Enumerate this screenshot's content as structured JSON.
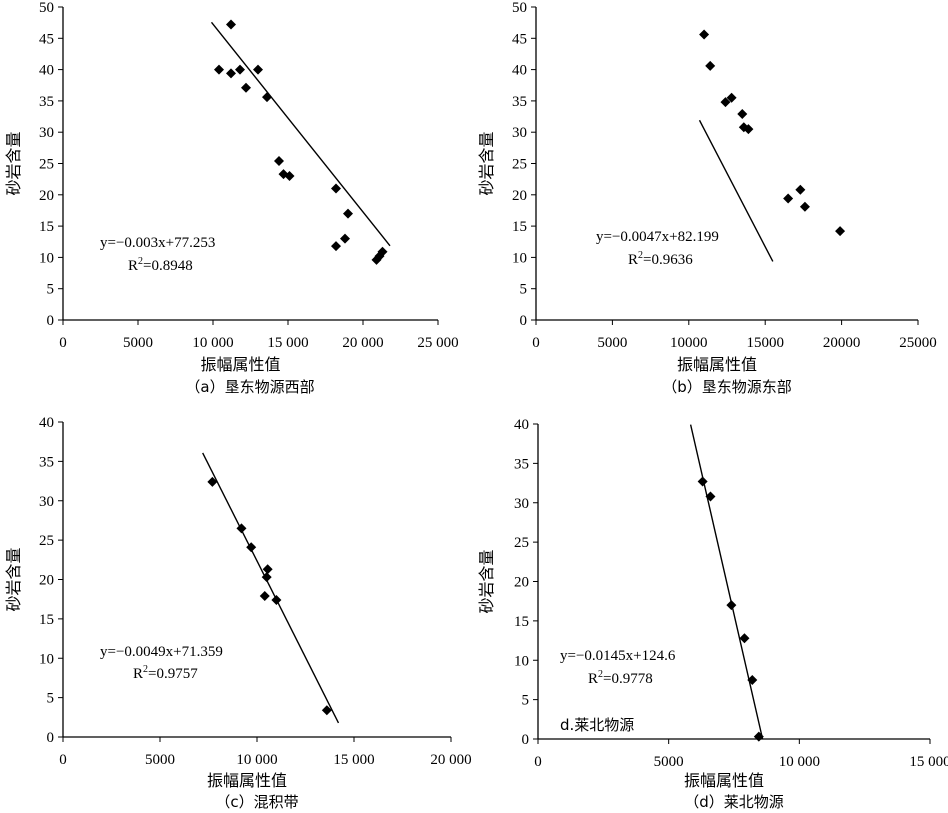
{
  "chart_data": [
    {
      "type": "scatter",
      "caption": "（a）垦东物源西部",
      "xlabel": "振幅属性值",
      "ylabel": "砂岩含量",
      "xlim": [
        0,
        25000
      ],
      "ylim": [
        0,
        50
      ],
      "x_ticks": [
        0,
        5000,
        10000,
        15000,
        20000,
        25000
      ],
      "x_tick_labels": [
        "0",
        "5000",
        "10 000",
        "15 000",
        "20 000",
        "25 000"
      ],
      "y_ticks": [
        0,
        5,
        10,
        15,
        20,
        25,
        30,
        35,
        40,
        45,
        50
      ],
      "y_tick_labels": [
        "0",
        "5",
        "10",
        "15",
        "20",
        "25",
        "30",
        "35",
        "40",
        "45",
        "50"
      ],
      "points": [
        {
          "x": 10400,
          "y": 40.0
        },
        {
          "x": 11200,
          "y": 39.4
        },
        {
          "x": 11200,
          "y": 47.2
        },
        {
          "x": 11800,
          "y": 40.0
        },
        {
          "x": 12200,
          "y": 37.1
        },
        {
          "x": 13000,
          "y": 40.0
        },
        {
          "x": 13600,
          "y": 35.6
        },
        {
          "x": 14400,
          "y": 25.4
        },
        {
          "x": 14700,
          "y": 23.3
        },
        {
          "x": 15100,
          "y": 23.0
        },
        {
          "x": 18200,
          "y": 21.0
        },
        {
          "x": 18200,
          "y": 11.8
        },
        {
          "x": 18800,
          "y": 13.0
        },
        {
          "x": 19000,
          "y": 17.0
        },
        {
          "x": 20900,
          "y": 9.6
        },
        {
          "x": 21100,
          "y": 10.2
        },
        {
          "x": 21300,
          "y": 10.9
        }
      ],
      "trendline": {
        "x_range": [
          9900,
          21800
        ],
        "slope": -0.003,
        "intercept": 77.253
      },
      "equation": "y=−0.003x+77.253",
      "r2": "0.8948"
    },
    {
      "type": "scatter",
      "caption": "（b）垦东物源东部",
      "xlabel": "振幅属性值",
      "ylabel": "砂岩含量",
      "xlim": [
        0,
        25000
      ],
      "ylim": [
        0,
        50
      ],
      "x_ticks": [
        0,
        5000,
        10000,
        15000,
        20000,
        25000
      ],
      "x_tick_labels": [
        "0",
        "5000",
        "10000",
        "15000",
        "20000",
        "25000"
      ],
      "y_ticks": [
        0,
        5,
        10,
        15,
        20,
        25,
        30,
        35,
        40,
        45,
        50
      ],
      "y_tick_labels": [
        "0",
        "5",
        "10",
        "15",
        "20",
        "25",
        "30",
        "35",
        "40",
        "45",
        "50"
      ],
      "points": [
        {
          "x": 11000,
          "y": 45.6
        },
        {
          "x": 11400,
          "y": 40.6
        },
        {
          "x": 12400,
          "y": 34.8
        },
        {
          "x": 12800,
          "y": 35.5
        },
        {
          "x": 13500,
          "y": 32.9
        },
        {
          "x": 13600,
          "y": 30.8
        },
        {
          "x": 13900,
          "y": 30.5
        },
        {
          "x": 16500,
          "y": 19.4
        },
        {
          "x": 17300,
          "y": 20.8
        },
        {
          "x": 17600,
          "y": 18.1
        },
        {
          "x": 19900,
          "y": 14.2
        }
      ],
      "trendline": {
        "x_range": [
          10700,
          15500
        ],
        "slope": -0.0047,
        "intercept": 82.199
      },
      "equation": "y=−0.0047x+82.199",
      "r2": "0.9636"
    },
    {
      "type": "scatter",
      "caption": "（c）混积带",
      "xlabel": "振幅属性值",
      "ylabel": "砂岩含量",
      "xlim": [
        0,
        20000
      ],
      "ylim": [
        0,
        40
      ],
      "x_ticks": [
        0,
        5000,
        10000,
        15000,
        20000
      ],
      "x_tick_labels": [
        "0",
        "5000",
        "10 000",
        "15 000",
        "20 000"
      ],
      "y_ticks": [
        0,
        5,
        10,
        15,
        20,
        25,
        30,
        35,
        40
      ],
      "y_tick_labels": [
        "0",
        "5",
        "10",
        "15",
        "20",
        "25",
        "30",
        "35",
        "40"
      ],
      "points": [
        {
          "x": 7700,
          "y": 32.4
        },
        {
          "x": 9200,
          "y": 26.5
        },
        {
          "x": 9700,
          "y": 24.1
        },
        {
          "x": 10400,
          "y": 17.9
        },
        {
          "x": 10500,
          "y": 20.3
        },
        {
          "x": 10550,
          "y": 21.3
        },
        {
          "x": 11000,
          "y": 17.4
        },
        {
          "x": 13600,
          "y": 3.4
        }
      ],
      "trendline": {
        "x_range": [
          7200,
          14200
        ],
        "slope": -0.0049,
        "intercept": 71.359
      },
      "equation": "y=−0.0049x+71.359",
      "r2": "0.9757"
    },
    {
      "type": "scatter",
      "caption": "（d）莱北物源",
      "annotation": "d.莱北物源",
      "xlabel": "振幅属性值",
      "ylabel": "砂岩含量",
      "xlim": [
        0,
        15000
      ],
      "ylim": [
        0,
        40
      ],
      "x_ticks": [
        0,
        5000,
        10000,
        15000
      ],
      "x_tick_labels": [
        "0",
        "5000",
        "10 000",
        "15 000"
      ],
      "y_ticks": [
        0,
        5,
        10,
        15,
        20,
        25,
        30,
        35,
        40
      ],
      "y_tick_labels": [
        "0",
        "5",
        "10",
        "15",
        "20",
        "25",
        "30",
        "35",
        "40"
      ],
      "points": [
        {
          "x": 6300,
          "y": 32.7
        },
        {
          "x": 6600,
          "y": 30.8
        },
        {
          "x": 7400,
          "y": 17.0
        },
        {
          "x": 7900,
          "y": 12.8
        },
        {
          "x": 8200,
          "y": 7.5
        },
        {
          "x": 8450,
          "y": 0.3
        }
      ],
      "trendline": {
        "x_range": [
          5840,
          8590
        ],
        "slope": -0.0145,
        "intercept": 124.6
      },
      "equation": "y=−0.0145x+124.6",
      "r2": "0.9778"
    }
  ]
}
